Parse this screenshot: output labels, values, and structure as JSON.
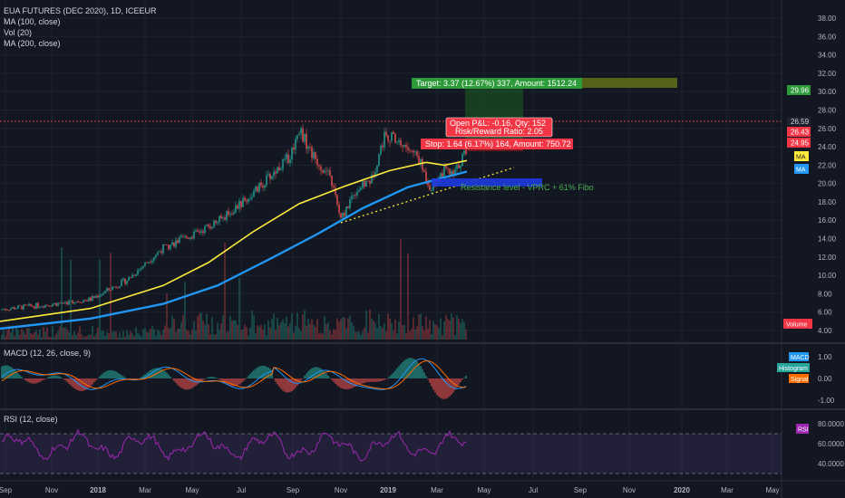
{
  "legend": {
    "title": "EUA FUTURES (DEC 2020), 1D, ICEEUR",
    "studies": [
      "MA (100, close)",
      "Vol (20)",
      "MA (200, close)"
    ]
  },
  "price_axis": {
    "ticks": [
      "38.00",
      "36.00",
      "34.00",
      "32.00",
      "30.00",
      "28.00",
      "26.00",
      "24.00",
      "22.00",
      "20.00",
      "18.00",
      "16.00",
      "14.00",
      "12.00",
      "10.00",
      "8.00",
      "6.00",
      "4.00"
    ],
    "tick_values": [
      38,
      36,
      34,
      32,
      30,
      28,
      26,
      24,
      22,
      20,
      18,
      16,
      14,
      12,
      10,
      8,
      6,
      4
    ]
  },
  "price_badges": {
    "target": "29.96",
    "resistance_line": "26.59",
    "last_price": "26.43",
    "stop": "24.95",
    "ma_label": "MA",
    "ma2_label": "MA",
    "volume_label": "Volume"
  },
  "trade": {
    "target_text": "Target: 3.37 (12.67%) 337, Amount: 1512.24",
    "pnl_text": "Open P&L: -0.16, Qty: 152",
    "rr_text": "Risk/Reward Ratio: 2.05",
    "stop_text": "Stop: 1.64 (6.17%) 164, Amount: 750.72"
  },
  "annotation": {
    "resistance_text": "Resistance level - VPRC + 61% Fibo"
  },
  "macd": {
    "legend": "MACD (12, 26, close, 9)",
    "ticks": [
      "1.00",
      "0.00",
      "-1.00"
    ],
    "tick_values": [
      1,
      0,
      -1
    ],
    "labels": {
      "macd": "MACD",
      "histogram": "Histogram",
      "signal": "Signal"
    }
  },
  "rsi": {
    "legend": "RSI (12, close)",
    "ticks": [
      "80.0000",
      "60.0000",
      "40.0000"
    ],
    "tick_values": [
      80,
      60,
      40
    ],
    "label": "RSI"
  },
  "time_axis": {
    "labels": [
      "Sep",
      "Nov",
      "2018",
      "Mar",
      "May",
      "Jul",
      "Sep",
      "Nov",
      "2019",
      "Mar",
      "May",
      "Jul",
      "Sep",
      "Nov",
      "2020",
      "Mar",
      "May"
    ]
  },
  "colors": {
    "background": "#131722",
    "ma100": "#ffeb3b",
    "ma200": "#2196f3",
    "up": "#26a69a",
    "down": "#ef5350",
    "target_zone": "#4caf50",
    "rsi": "#9c27b0"
  }
}
